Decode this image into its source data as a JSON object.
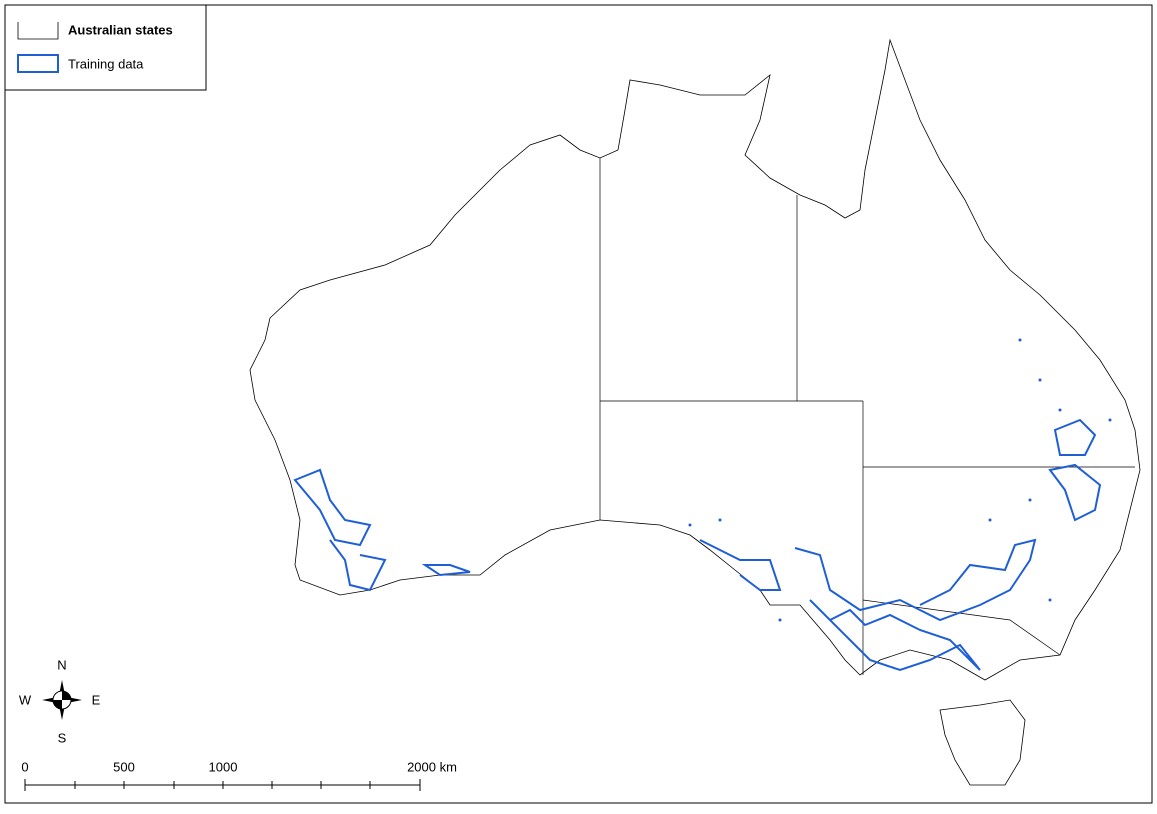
{
  "legend": {
    "items": [
      "Australian states",
      "Training data"
    ]
  },
  "compass": {
    "north": "N",
    "south": "S",
    "east": "E",
    "west": "W"
  },
  "scale_bar": {
    "labels": [
      "0",
      "500",
      "1000",
      "2000 km"
    ]
  }
}
